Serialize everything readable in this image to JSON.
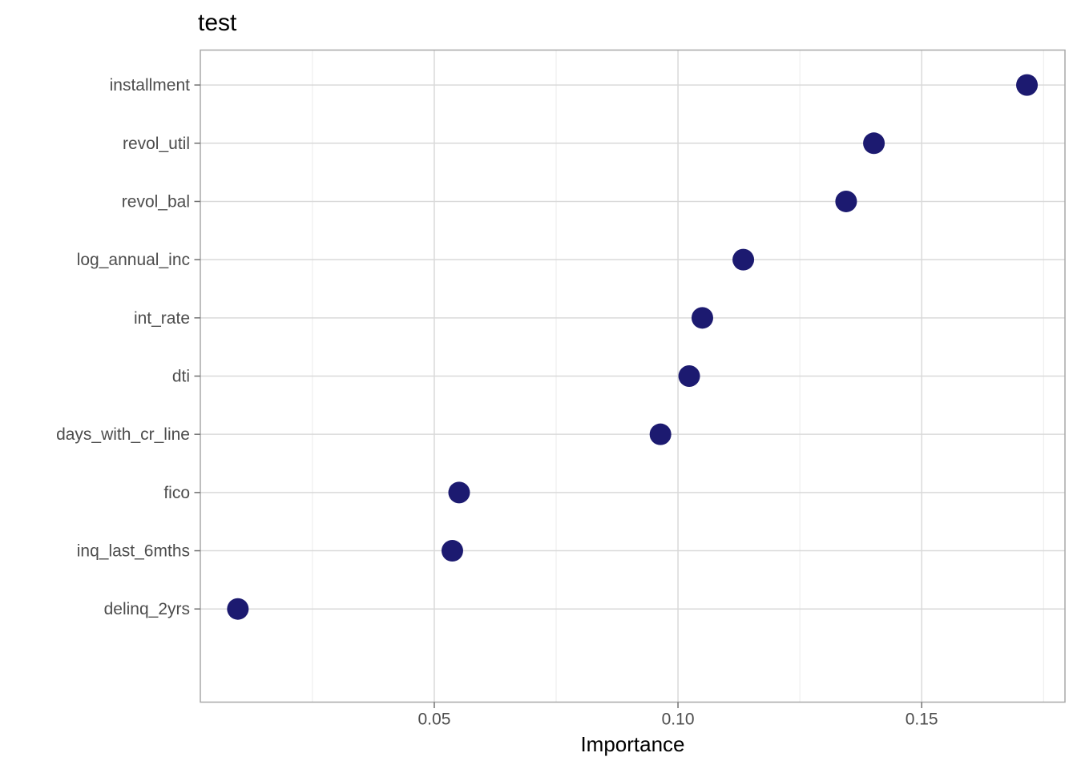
{
  "page": {
    "background_color": "#ffffff"
  },
  "chart_data": {
    "type": "scatter",
    "variant": "horizontal-dot-plot",
    "title": "test",
    "xlabel": "Importance",
    "ylabel": "",
    "categories": [
      "installment",
      "revol_util",
      "revol_bal",
      "log_annual_inc",
      "int_rate",
      "dti",
      "days_with_cr_line",
      "fico",
      "inq_last_6mths",
      "delinq_2yrs"
    ],
    "values": [
      0.1716,
      0.1402,
      0.1345,
      0.1134,
      0.105,
      0.1023,
      0.0964,
      0.0551,
      0.0537,
      0.0097
    ],
    "xlim": [
      0.002,
      0.1794
    ],
    "x_major_ticks": [
      0.05,
      0.1,
      0.15
    ],
    "x_tick_labels": [
      "0.05",
      "0.10",
      "0.15"
    ],
    "x_minor_ticks": [
      0.025,
      0.075,
      0.125,
      0.175
    ],
    "grid": "vertical major+minor, horizontal major per category",
    "legend": "none",
    "style": {
      "point_color": "#1c1a70",
      "point_radius": 13.5,
      "grid_major_color": "#d9d9d9",
      "grid_minor_color": "#ebebeb",
      "panel_border_color": "#a8a8a8",
      "panel_background": "#ffffff",
      "tick_mark_color": "#707070",
      "tick_label_color": "#4d4d4d",
      "title_color": "#000000",
      "axis_title_color": "#000000"
    }
  }
}
